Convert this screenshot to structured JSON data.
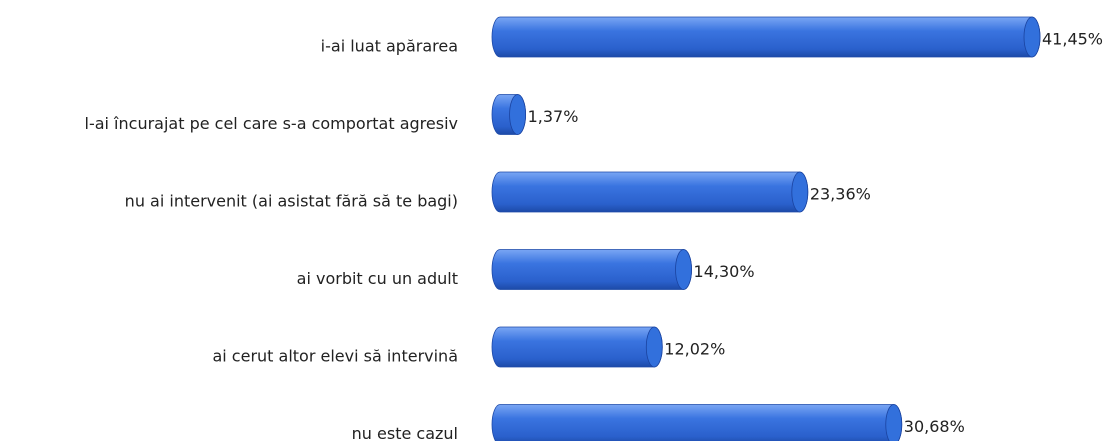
{
  "chart_data": {
    "type": "bar",
    "orientation": "horizontal",
    "categories": [
      "i-ai luat apărarea",
      "l-ai încurajat pe cel care s-a comportat agresiv",
      "nu ai intervenit (ai asistat fără să te bagi)",
      "ai vorbit cu un adult",
      "ai cerut altor elevi să intervină",
      "nu este cazul"
    ],
    "values": [
      41.45,
      1.37,
      23.36,
      14.3,
      12.02,
      30.68
    ],
    "value_labels": [
      "41,45%",
      "1,37%",
      "23,36%",
      "14,30%",
      "12,02%",
      "30,68%"
    ],
    "color": "#3270dc"
  }
}
